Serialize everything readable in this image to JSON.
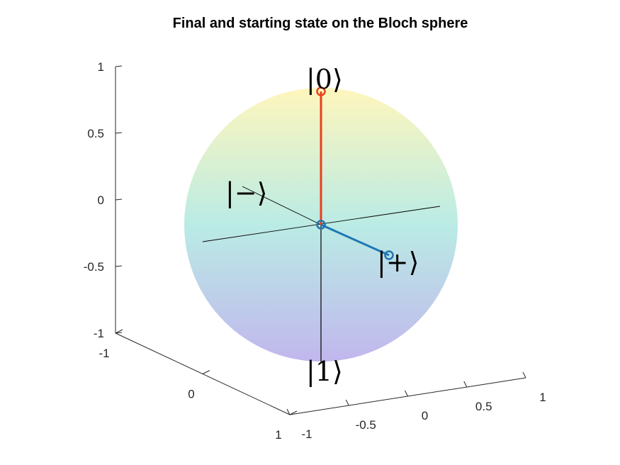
{
  "chart_data": {
    "type": "bloch_sphere_3d",
    "title": "Final and starting state on the Bloch sphere",
    "xlabel": "",
    "ylabel": "",
    "zlabel": "",
    "xlim": [
      -1,
      1
    ],
    "ylim": [
      -1,
      1
    ],
    "zlim": [
      -1,
      1
    ],
    "x_ticks": [
      "-1",
      "-0.5",
      "0",
      "0.5",
      "1"
    ],
    "y_ticks": [
      "-1",
      "0",
      "1"
    ],
    "z_ticks": [
      "-1",
      "-0.5",
      "0",
      "0.5",
      "1"
    ],
    "grid": false,
    "sphere": {
      "colormap_top": "#fff4b0",
      "colormap_mid": "#aee8e0",
      "colormap_bottom": "#b6aaea",
      "opacity": 0.85
    },
    "basis_labels": [
      {
        "text": "|0⟩",
        "vector": [
          0,
          0,
          1
        ]
      },
      {
        "text": "|1⟩",
        "vector": [
          0,
          0,
          -1
        ]
      },
      {
        "text": "|+⟩",
        "vector": [
          1,
          0,
          0
        ]
      },
      {
        "text": "|−⟩",
        "vector": [
          -1,
          0,
          0
        ]
      }
    ],
    "series": [
      {
        "color": "#e8401c",
        "from": [
          0,
          0,
          0
        ],
        "to": [
          0,
          0,
          1
        ]
      },
      {
        "color": "#1f77b4",
        "from": [
          0,
          0,
          0
        ],
        "to": [
          1,
          0,
          0
        ]
      }
    ]
  }
}
